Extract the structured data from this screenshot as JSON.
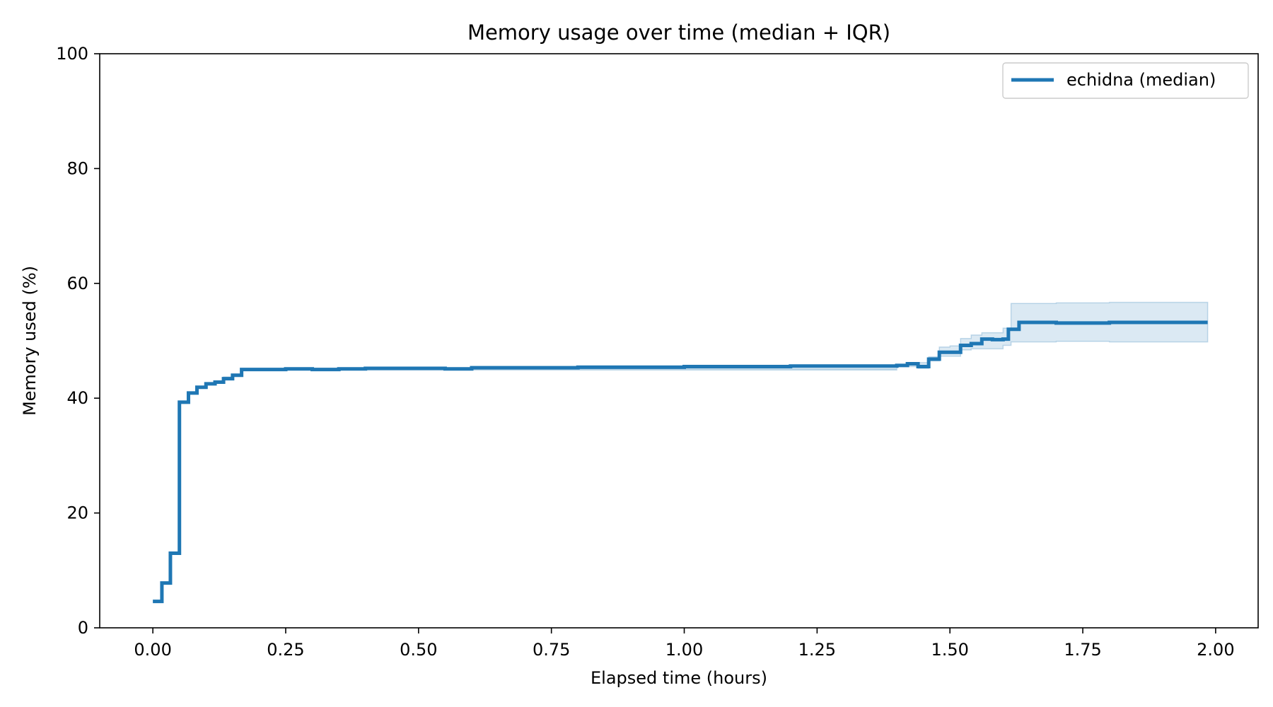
{
  "chart_data": {
    "type": "line",
    "title": "Memory usage over time (median + IQR)",
    "xlabel": "Elapsed time (hours)",
    "ylabel": "Memory used (%)",
    "xlim": [
      -0.1,
      2.08
    ],
    "ylim": [
      0,
      100
    ],
    "x_ticks": [
      0.0,
      0.25,
      0.5,
      0.75,
      1.0,
      1.25,
      1.5,
      1.75,
      2.0
    ],
    "x_tick_labels": [
      "0.00",
      "0.25",
      "0.50",
      "0.75",
      "1.00",
      "1.25",
      "1.50",
      "1.75",
      "2.00"
    ],
    "y_ticks": [
      0,
      20,
      40,
      60,
      80,
      100
    ],
    "y_tick_labels": [
      "0",
      "20",
      "40",
      "60",
      "80",
      "100"
    ],
    "grid": false,
    "legend_position": "top-right",
    "step": true,
    "series": [
      {
        "name": "echidna (median)",
        "color": "#1f77b4",
        "band_color": "#1f77b4",
        "points": [
          [
            0.0,
            4.6
          ],
          [
            0.017,
            7.8
          ],
          [
            0.033,
            13.0
          ],
          [
            0.05,
            39.3
          ],
          [
            0.067,
            40.9
          ],
          [
            0.083,
            41.9
          ],
          [
            0.1,
            42.5
          ],
          [
            0.117,
            42.8
          ],
          [
            0.133,
            43.4
          ],
          [
            0.15,
            44.0
          ],
          [
            0.167,
            45.0
          ],
          [
            0.25,
            45.1
          ],
          [
            0.3,
            45.0
          ],
          [
            0.35,
            45.1
          ],
          [
            0.4,
            45.2
          ],
          [
            0.5,
            45.2
          ],
          [
            0.55,
            45.1
          ],
          [
            0.6,
            45.3
          ],
          [
            0.7,
            45.3
          ],
          [
            0.8,
            45.4
          ],
          [
            0.9,
            45.4
          ],
          [
            1.0,
            45.5
          ],
          [
            1.1,
            45.5
          ],
          [
            1.2,
            45.6
          ],
          [
            1.3,
            45.6
          ],
          [
            1.4,
            45.7
          ],
          [
            1.42,
            46.0
          ],
          [
            1.44,
            45.5
          ],
          [
            1.46,
            46.8
          ],
          [
            1.48,
            48.0
          ],
          [
            1.5,
            48.0
          ],
          [
            1.52,
            49.2
          ],
          [
            1.54,
            49.5
          ],
          [
            1.56,
            50.3
          ],
          [
            1.58,
            50.2
          ],
          [
            1.6,
            50.3
          ],
          [
            1.61,
            52.0
          ],
          [
            1.63,
            53.2
          ],
          [
            1.7,
            53.1
          ],
          [
            1.8,
            53.2
          ],
          [
            1.9,
            53.2
          ],
          [
            1.985,
            53.2
          ]
        ],
        "band": [
          [
            0.0,
            4.6,
            4.6
          ],
          [
            0.017,
            7.8,
            7.8
          ],
          [
            0.033,
            13.0,
            13.0
          ],
          [
            0.05,
            39.3,
            39.3
          ],
          [
            0.067,
            40.9,
            40.9
          ],
          [
            0.083,
            41.9,
            41.9
          ],
          [
            0.1,
            42.5,
            42.5
          ],
          [
            0.117,
            42.8,
            42.8
          ],
          [
            0.133,
            43.2,
            43.7
          ],
          [
            0.15,
            43.8,
            44.2
          ],
          [
            0.167,
            44.9,
            45.1
          ],
          [
            1.4,
            45.5,
            45.9
          ],
          [
            1.44,
            45.2,
            46.2
          ],
          [
            1.46,
            46.5,
            47.2
          ],
          [
            1.48,
            47.3,
            48.9
          ],
          [
            1.5,
            47.3,
            49.1
          ],
          [
            1.52,
            48.4,
            50.4
          ],
          [
            1.54,
            48.6,
            51.0
          ],
          [
            1.56,
            48.6,
            51.4
          ],
          [
            1.6,
            49.2,
            52.2
          ],
          [
            1.615,
            49.8,
            56.5
          ],
          [
            1.7,
            49.9,
            56.6
          ],
          [
            1.8,
            49.8,
            56.7
          ],
          [
            1.9,
            49.8,
            56.7
          ],
          [
            1.985,
            49.8,
            56.7
          ]
        ]
      }
    ]
  }
}
